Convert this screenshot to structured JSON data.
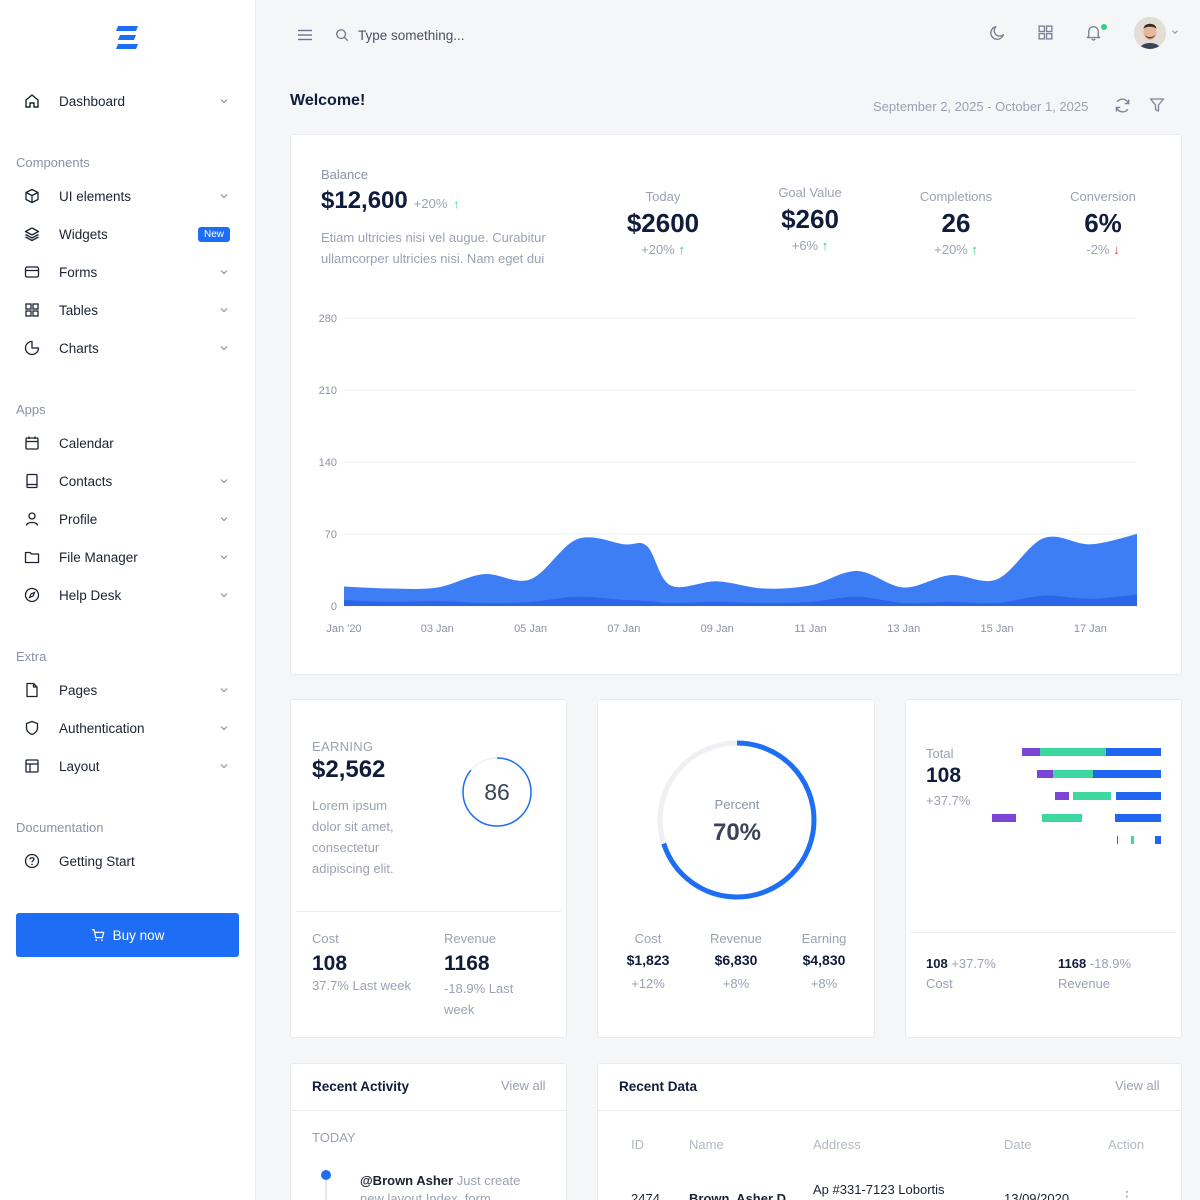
{
  "sidebar": {
    "items": [
      {
        "label": "Dashboard",
        "icon": "home-icon",
        "chevron": true
      },
      {
        "label": "UI elements",
        "icon": "cube-icon",
        "chevron": true
      },
      {
        "label": "Widgets",
        "icon": "layers-icon",
        "badge": "New"
      },
      {
        "label": "Forms",
        "icon": "credit-card-icon",
        "chevron": true
      },
      {
        "label": "Tables",
        "icon": "grid-icon",
        "chevron": true
      },
      {
        "label": "Charts",
        "icon": "pie-chart-icon",
        "chevron": true
      },
      {
        "label": "Calendar",
        "icon": "calendar-icon",
        "chevron": false
      },
      {
        "label": "Contacts",
        "icon": "book-icon",
        "chevron": true
      },
      {
        "label": "Profile",
        "icon": "user-icon",
        "chevron": true
      },
      {
        "label": "File Manager",
        "icon": "folder-icon",
        "chevron": true
      },
      {
        "label": "Help Desk",
        "icon": "compass-icon",
        "chevron": true
      },
      {
        "label": "Pages",
        "icon": "file-icon",
        "chevron": true
      },
      {
        "label": "Authentication",
        "icon": "shield-icon",
        "chevron": true
      },
      {
        "label": "Layout",
        "icon": "layout-icon",
        "chevron": true
      },
      {
        "label": "Getting Start",
        "icon": "help-circle-icon",
        "chevron": false
      }
    ],
    "sections": {
      "components": "Components",
      "apps": "Apps",
      "extra": "Extra",
      "documentation": "Documentation"
    },
    "buy_label": "Buy now"
  },
  "header": {
    "search_placeholder": "Type something...",
    "welcome": "Welcome!",
    "date_range": "September 2, 2025 - October 1, 2025"
  },
  "balance": {
    "title": "Balance",
    "value": "$12,600",
    "change": "+20%",
    "description_line1": "Etiam ultricies nisi vel augue. Curabitur",
    "description_line2": "ullamcorper ultricies nisi. Nam eget dui",
    "stats": [
      {
        "title": "Today",
        "value": "$2600",
        "change": "+20%",
        "dir": "up"
      },
      {
        "title": "Goal Value",
        "value": "$260",
        "change": "+6%",
        "dir": "up"
      },
      {
        "title": "Completions",
        "value": "26",
        "change": "+20%",
        "dir": "up"
      },
      {
        "title": "Conversion",
        "value": "6%",
        "change": "-2%",
        "dir": "down"
      }
    ]
  },
  "chart_data": {
    "type": "area",
    "title": "",
    "xlabel": "",
    "ylabel": "",
    "x_ticks": [
      "Jan '20",
      "03 Jan",
      "05 Jan",
      "07 Jan",
      "09 Jan",
      "11 Jan",
      "13 Jan",
      "15 Jan",
      "17 Jan"
    ],
    "y_ticks": [
      "0",
      "70",
      "140",
      "210",
      "280"
    ],
    "ylim": [
      0,
      280
    ],
    "x": [
      1,
      2,
      3,
      4,
      5,
      6,
      7,
      7.5,
      8,
      9,
      10,
      11,
      12,
      13,
      14,
      15,
      16,
      17,
      18
    ],
    "series": [
      {
        "color": "#3d7ef5",
        "values": [
          19,
          17,
          18,
          31,
          26,
          65,
          60,
          58,
          20,
          24,
          17,
          20,
          34,
          18,
          30,
          26,
          66,
          60,
          70
        ]
      },
      {
        "color": "#2a66e6",
        "values": [
          6,
          4,
          5,
          3,
          4,
          9,
          6,
          5,
          3,
          4,
          3,
          4,
          9,
          3,
          4,
          3,
          10,
          7,
          11
        ]
      }
    ],
    "grid": true,
    "legend": "none"
  },
  "earning": {
    "title": "EARNING",
    "value": "$2,562",
    "desc": [
      "Lorem ipsum",
      "dolor sit amet,",
      "consectetur",
      "adipiscing elit."
    ],
    "ring_value": "86",
    "ring_fraction": 0.86,
    "cost_label": "Cost",
    "cost_value": "108",
    "cost_sub": "37.7% Last week",
    "revenue_label": "Revenue",
    "revenue_value": "1168",
    "revenue_sub1": "-18.9% Last",
    "revenue_sub2": "week"
  },
  "percent": {
    "label": "Percent",
    "value": "70%",
    "fraction": 0.7,
    "cols": [
      {
        "title": "Cost",
        "value": "$1,823",
        "change": "+12%"
      },
      {
        "title": "Revenue",
        "value": "$6,830",
        "change": "+8%"
      },
      {
        "title": "Earning",
        "value": "$4,830",
        "change": "+8%"
      }
    ]
  },
  "total": {
    "label": "Total",
    "value": "108",
    "change": "+37.7%",
    "cost_value": "108",
    "cost_change": "+37.7%",
    "cost_label": "Cost",
    "revenue_value": "1168",
    "revenue_change": "-18.9%",
    "revenue_label": "Revenue",
    "colors": {
      "purple": "#7b45d6",
      "green": "#3dd7a0",
      "blue": "#2166f3"
    }
  },
  "recent_activity": {
    "title": "Recent Activity",
    "view_all": "View all",
    "today": "TODAY",
    "item_user": "@Brown Asher",
    "item_text": "Just create",
    "item_text2": "new layout Index, form,"
  },
  "recent_data": {
    "title": "Recent Data",
    "view_all": "View all",
    "columns": [
      "ID",
      "Name",
      "Address",
      "Date",
      "Action"
    ],
    "row": {
      "id": "2474",
      "name": "Brown, Asher D.",
      "address": "Ap #331-7123 Lobortis",
      "date": "13/09/2020"
    }
  }
}
